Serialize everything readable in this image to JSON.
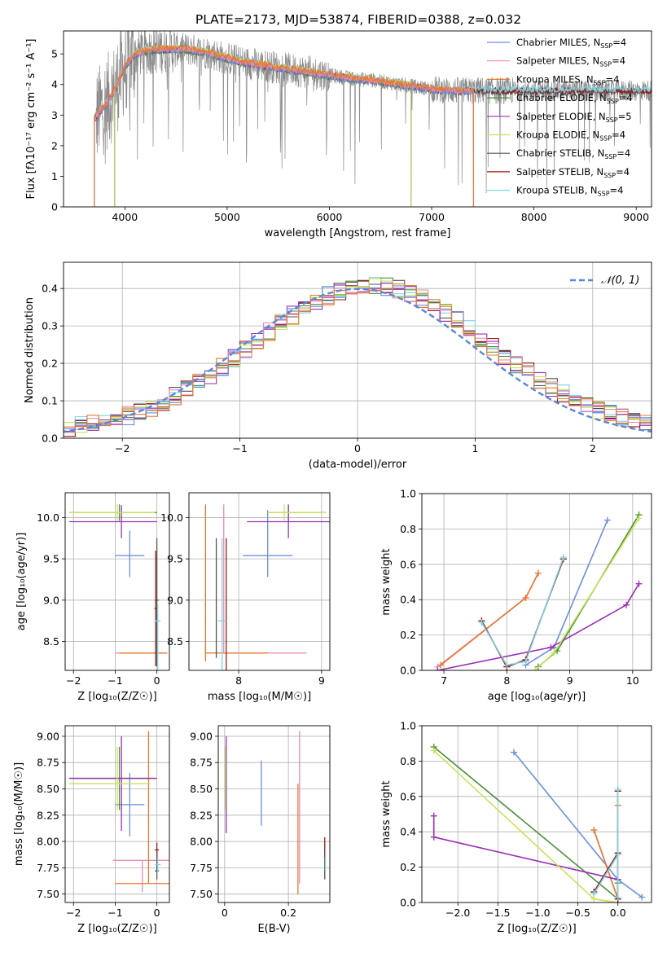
{
  "figure": {
    "title": "PLATE=2173, MJD=53874, FIBERID=0388, z=0.032"
  },
  "colors": {
    "chabrier_miles": "#6a8fdc",
    "salpeter_miles": "#e98ab8",
    "kroupa_miles": "#e8782e",
    "chabrier_elodie": "#4c8f3a",
    "salpeter_elodie": "#9a2fb5",
    "kroupa_elodie": "#c8e35a",
    "chabrier_stelib": "#555555",
    "salpeter_stelib": "#9b1a1a",
    "kroupa_stelib": "#7fd4e0",
    "data_spectrum": "#8a8a8a",
    "gaussian": "#5b86d6",
    "grid": "#b0b0b0"
  },
  "chart_data": [
    {
      "id": "spectrum",
      "type": "line",
      "xlabel": "wavelength [Angstrom, rest frame]",
      "ylabel": "Flux [fλ10⁻¹⁷ erg cm⁻² s⁻¹ A⁻¹]",
      "xlim": [
        3400,
        9150
      ],
      "ylim": [
        0,
        5.75
      ],
      "xticks": [
        4000,
        5000,
        6000,
        7000,
        8000,
        9000
      ],
      "yticks": [
        0,
        1,
        2,
        3,
        4,
        5
      ],
      "grid": false,
      "legend_position": "top-right",
      "legend": [
        {
          "base": "Chabrier MILES, N",
          "sub": "SSP",
          "tail": "=4",
          "color_key": "chabrier_miles"
        },
        {
          "base": "Salpeter MILES, N",
          "sub": "SSP",
          "tail": "=4",
          "color_key": "salpeter_miles"
        },
        {
          "base": "Kroupa MILES, N",
          "sub": "SSP",
          "tail": "=4",
          "color_key": "kroupa_miles"
        },
        {
          "base": "Chabrier ELODIE, N",
          "sub": "SSP",
          "tail": "=4",
          "color_key": "chabrier_elodie"
        },
        {
          "base": "Salpeter ELODIE, N",
          "sub": "SSP",
          "tail": "=5",
          "color_key": "salpeter_elodie"
        },
        {
          "base": "Kroupa ELODIE, N",
          "sub": "SSP",
          "tail": "=4",
          "color_key": "kroupa_elodie"
        },
        {
          "base": "Chabrier STELIB, N",
          "sub": "SSP",
          "tail": "=4",
          "color_key": "chabrier_stelib"
        },
        {
          "base": "Salpeter STELIB, N",
          "sub": "SSP",
          "tail": "=4",
          "color_key": "salpeter_stelib"
        },
        {
          "base": "Kroupa STELIB, N",
          "sub": "SSP",
          "tail": "=4",
          "color_key": "kroupa_stelib"
        }
      ],
      "continuum": {
        "x": [
          3700,
          3800,
          3900,
          4000,
          4100,
          4200,
          4400,
          4600,
          4800,
          5000,
          5200,
          5400,
          5600,
          5800,
          6000,
          6200,
          6400,
          6600,
          6800,
          7000,
          7200,
          7400
        ],
        "y": [
          2.9,
          3.3,
          3.8,
          4.6,
          5.0,
          5.1,
          5.15,
          5.15,
          5.05,
          4.85,
          4.7,
          4.6,
          4.5,
          4.4,
          4.3,
          4.2,
          4.15,
          4.05,
          3.95,
          3.85,
          3.8,
          3.8
        ]
      },
      "model_ranges": {
        "miles": [
          3540,
          7410
        ],
        "elodie": [
          3900,
          6800
        ],
        "stelib": [
          3200,
          9300
        ]
      }
    },
    {
      "id": "residual_histogram",
      "type": "histogram",
      "xlabel": "(data-model)/error",
      "ylabel": "Normed distribution",
      "xlim": [
        -2.5,
        2.5
      ],
      "ylim": [
        0,
        0.47
      ],
      "xticks": [
        -2,
        -1,
        0,
        1,
        2
      ],
      "yticks": [
        0.0,
        0.1,
        0.2,
        0.3,
        0.4
      ],
      "grid": true,
      "bin_width": 0.1,
      "legend": [
        "𝒩(0, 1)"
      ],
      "legend_position": "top-right",
      "gaussian": {
        "mean": 0,
        "sigma": 1
      }
    },
    {
      "id": "age_vs_Z",
      "type": "errorbar",
      "xlabel": "Z [log₁₀(Z/Z☉)]",
      "ylabel": "age  [log₁₀(age/yr)]",
      "xlim": [
        -2.2,
        0.3
      ],
      "ylim": [
        8.15,
        10.3
      ],
      "xticks": [
        -2,
        -1,
        0
      ],
      "yticks": [
        8.5,
        9.0,
        9.5,
        10.0
      ],
      "grid": true,
      "points": [
        {
          "key": "chabrier_miles",
          "x": -0.65,
          "y": 9.54,
          "xerr": [
            0.35,
            0.35
          ],
          "yerr": [
            0.26,
            0.3
          ]
        },
        {
          "key": "salpeter_miles",
          "x": -0.35,
          "y": 8.36,
          "xerr": [
            0.65,
            0.55
          ],
          "yerr": [
            0,
            0
          ]
        },
        {
          "key": "kroupa_miles",
          "x": -0.1,
          "y": 8.36,
          "xerr": [
            0.8,
            0.35
          ],
          "yerr": [
            0,
            0
          ]
        },
        {
          "key": "chabrier_elodie",
          "x": -0.9,
          "y": 10.06,
          "xerr": [
            1.2,
            0.9
          ],
          "yerr": [
            0.1,
            0.1
          ]
        },
        {
          "key": "salpeter_elodie",
          "x": -0.85,
          "y": 9.95,
          "xerr": [
            1.25,
            0.85
          ],
          "yerr": [
            0.2,
            0.2
          ]
        },
        {
          "key": "kroupa_elodie",
          "x": -0.95,
          "y": 10.06,
          "xerr": [
            1.15,
            0.9
          ],
          "yerr": [
            0.1,
            0.1
          ]
        },
        {
          "key": "chabrier_stelib",
          "x": 0.0,
          "y": 9.0,
          "xerr": [
            0.05,
            0.05
          ],
          "yerr": [
            0.8,
            0.75
          ]
        },
        {
          "key": "salpeter_stelib",
          "x": -0.03,
          "y": 8.9,
          "xerr": [
            0.03,
            0.03
          ],
          "yerr": [
            0.7,
            0.7
          ]
        },
        {
          "key": "kroupa_stelib",
          "x": 0.02,
          "y": 8.75,
          "xerr": [
            0.07,
            0.07
          ],
          "yerr": [
            0.6,
            0.2
          ]
        }
      ]
    },
    {
      "id": "age_vs_mass",
      "type": "errorbar",
      "xlabel": "mass [log₁₀(M/M☉)]",
      "ylabel": "",
      "xlim": [
        7.4,
        9.1
      ],
      "ylim": [
        8.15,
        10.3
      ],
      "xticks": [
        8,
        9
      ],
      "yticks": [
        8.5,
        9.0,
        9.5,
        10.0
      ],
      "grid": true,
      "points": [
        {
          "key": "chabrier_miles",
          "x": 8.35,
          "y": 9.54,
          "xerr": [
            0.3,
            0.3
          ],
          "yerr": [
            0.26,
            0.55
          ]
        },
        {
          "key": "salpeter_miles",
          "x": 7.82,
          "y": 8.36,
          "xerr": [
            0.0,
            1.0
          ],
          "yerr": [
            0.0,
            1.8
          ]
        },
        {
          "key": "kroupa_miles",
          "x": 7.6,
          "y": 8.36,
          "xerr": [
            0.0,
            0.75
          ],
          "yerr": [
            0.1,
            1.8
          ]
        },
        {
          "key": "chabrier_elodie",
          "x": 8.6,
          "y": 10.06,
          "xerr": [
            0.25,
            0.45
          ],
          "yerr": [
            0.1,
            0.1
          ]
        },
        {
          "key": "salpeter_elodie",
          "x": 8.6,
          "y": 9.95,
          "xerr": [
            0.5,
            0.5
          ],
          "yerr": [
            0.2,
            0.2
          ]
        },
        {
          "key": "kroupa_elodie",
          "x": 8.55,
          "y": 10.06,
          "xerr": [
            0.2,
            0.5
          ],
          "yerr": [
            0.1,
            0.1
          ]
        },
        {
          "key": "chabrier_stelib",
          "x": 7.73,
          "y": 9.0,
          "xerr": [
            0.0,
            0.0
          ],
          "yerr": [
            0.7,
            0.75
          ]
        },
        {
          "key": "salpeter_stelib",
          "x": 7.85,
          "y": 8.75,
          "xerr": [
            0.0,
            0.0
          ],
          "yerr": [
            0.6,
            1.0
          ]
        },
        {
          "key": "kroupa_stelib",
          "x": 7.8,
          "y": 8.75,
          "xerr": [
            0.05,
            0.05
          ],
          "yerr": [
            0.6,
            1.0
          ]
        }
      ]
    },
    {
      "id": "weight_vs_age",
      "type": "line",
      "xlabel": "age  [log₁₀(age/yr)]",
      "ylabel": "mass weight",
      "xlim": [
        6.65,
        10.3
      ],
      "ylim": [
        0,
        1.0
      ],
      "xticks": [
        7,
        8,
        9,
        10
      ],
      "yticks": [
        0.0,
        0.2,
        0.4,
        0.6,
        0.8,
        1.0
      ],
      "grid": true,
      "series": [
        {
          "key": "chabrier_miles",
          "x": [
            8.3,
            8.75,
            9.6
          ],
          "y": [
            0.03,
            0.13,
            0.85
          ]
        },
        {
          "key": "salpeter_miles",
          "x": [
            6.9,
            8.3,
            8.5
          ],
          "y": [
            0.02,
            0.41,
            0.55
          ]
        },
        {
          "key": "kroupa_miles",
          "x": [
            6.95,
            8.3,
            8.5
          ],
          "y": [
            0.03,
            0.41,
            0.55
          ]
        },
        {
          "key": "chabrier_elodie",
          "x": [
            8.5,
            8.8,
            10.1
          ],
          "y": [
            0.02,
            0.11,
            0.88
          ]
        },
        {
          "key": "salpeter_elodie",
          "x": [
            6.9,
            8.7,
            9.9,
            10.1
          ],
          "y": [
            0.0,
            0.13,
            0.37,
            0.49
          ]
        },
        {
          "key": "kroupa_elodie",
          "x": [
            8.45,
            8.75,
            10.1
          ],
          "y": [
            0.0,
            0.1,
            0.86
          ]
        },
        {
          "key": "chabrier_stelib",
          "x": [
            7.6,
            8.0,
            8.3,
            8.9
          ],
          "y": [
            0.28,
            0.02,
            0.06,
            0.63
          ]
        },
        {
          "key": "salpeter_stelib",
          "x": [
            7.6,
            8.0,
            8.3,
            8.9
          ],
          "y": [
            0.28,
            0.02,
            0.06,
            0.63
          ]
        },
        {
          "key": "kroupa_stelib",
          "x": [
            7.6,
            8.0,
            8.3,
            8.9
          ],
          "y": [
            0.27,
            0.03,
            0.05,
            0.64
          ]
        }
      ]
    },
    {
      "id": "mass_vs_Z",
      "type": "errorbar",
      "xlabel": "Z [log₁₀(Z/Z☉)]",
      "ylabel": "mass [log₁₀(M/M☉)]",
      "xlim": [
        -2.2,
        0.3
      ],
      "ylim": [
        7.42,
        9.1
      ],
      "xticks": [
        -2,
        -1,
        0
      ],
      "yticks": [
        7.5,
        7.75,
        8.0,
        8.25,
        8.5,
        8.75,
        9.0
      ],
      "grid": true,
      "points": [
        {
          "key": "chabrier_miles",
          "x": -0.65,
          "y": 8.35,
          "xerr": [
            0.35,
            0.35
          ],
          "yerr": [
            0.3,
            0.3
          ]
        },
        {
          "key": "salpeter_miles",
          "x": -0.35,
          "y": 7.82,
          "xerr": [
            0.7,
            0.65
          ],
          "yerr": [
            0.3,
            0.0
          ]
        },
        {
          "key": "kroupa_miles",
          "x": -0.2,
          "y": 7.6,
          "xerr": [
            0.8,
            0.5
          ],
          "yerr": [
            0.0,
            1.45
          ]
        },
        {
          "key": "chabrier_elodie",
          "x": -0.9,
          "y": 8.6,
          "xerr": [
            1.2,
            0.85
          ],
          "yerr": [
            0.3,
            0.3
          ]
        },
        {
          "key": "salpeter_elodie",
          "x": -0.85,
          "y": 8.6,
          "xerr": [
            1.25,
            0.85
          ],
          "yerr": [
            0.5,
            0.4
          ]
        },
        {
          "key": "kroupa_elodie",
          "x": -0.95,
          "y": 8.55,
          "xerr": [
            1.15,
            0.8
          ],
          "yerr": [
            0.25,
            0.35
          ]
        },
        {
          "key": "chabrier_stelib",
          "x": 0.0,
          "y": 7.72,
          "xerr": [
            0.05,
            0.05
          ],
          "yerr": [
            0.08,
            0.2
          ]
        },
        {
          "key": "salpeter_stelib",
          "x": 0.0,
          "y": 7.92,
          "xerr": [
            0.05,
            0.05
          ],
          "yerr": [
            0.07,
            0.07
          ]
        },
        {
          "key": "kroupa_stelib",
          "x": 0.02,
          "y": 7.78,
          "xerr": [
            0.07,
            0.07
          ],
          "yerr": [
            0.07,
            0.07
          ]
        }
      ]
    },
    {
      "id": "mass_vs_ebv",
      "type": "errorbar",
      "xlabel": "E(B-V)",
      "ylabel": "",
      "xlim": [
        -0.02,
        0.33
      ],
      "ylim": [
        7.42,
        9.1
      ],
      "xticks": [
        0.0,
        0.2
      ],
      "yticks": [
        7.5,
        7.75,
        8.0,
        8.25,
        8.5,
        8.75,
        9.0
      ],
      "grid": true,
      "points": [
        {
          "key": "chabrier_miles",
          "x": 0.115,
          "y": 8.47,
          "xerr": [
            0,
            0
          ],
          "yerr": [
            0.32,
            0.3
          ]
        },
        {
          "key": "salpeter_miles",
          "x": 0.235,
          "y": 8.25,
          "xerr": [
            0,
            0
          ],
          "yerr": [
            0.65,
            0.8
          ]
        },
        {
          "key": "kroupa_miles",
          "x": 0.23,
          "y": 8.0,
          "xerr": [
            0,
            0
          ],
          "yerr": [
            0.5,
            0.55
          ]
        },
        {
          "key": "chabrier_elodie",
          "x": 0.003,
          "y": 8.6,
          "xerr": [
            0,
            0
          ],
          "yerr": [
            0.3,
            0.3
          ]
        },
        {
          "key": "salpeter_elodie",
          "x": 0.005,
          "y": 8.5,
          "xerr": [
            0,
            0
          ],
          "yerr": [
            0.42,
            0.5
          ]
        },
        {
          "key": "kroupa_elodie",
          "x": 0.002,
          "y": 8.55,
          "xerr": [
            0,
            0
          ],
          "yerr": [
            0.25,
            0.35
          ]
        },
        {
          "key": "chabrier_stelib",
          "x": 0.314,
          "y": 7.72,
          "xerr": [
            0,
            0
          ],
          "yerr": [
            0.08,
            0.2
          ]
        },
        {
          "key": "salpeter_stelib",
          "x": 0.314,
          "y": 7.92,
          "xerr": [
            0,
            0
          ],
          "yerr": [
            0.07,
            0.12
          ]
        },
        {
          "key": "kroupa_stelib",
          "x": 0.316,
          "y": 7.82,
          "xerr": [
            0,
            0
          ],
          "yerr": [
            0.1,
            0.1
          ]
        }
      ]
    },
    {
      "id": "weight_vs_Z",
      "type": "line",
      "xlabel": "Z [log₁₀(Z/Z☉)]",
      "ylabel": "mass weight",
      "xlim": [
        -2.45,
        0.42
      ],
      "ylim": [
        0,
        1.0
      ],
      "xticks": [
        -2.0,
        -1.5,
        -1.0,
        -0.5,
        0.0
      ],
      "xtick_labels": [
        "−2.0",
        "−1.5",
        "−1.0",
        "−0.5",
        "0.0"
      ],
      "yticks": [
        0.0,
        0.2,
        0.4,
        0.6,
        0.8,
        1.0
      ],
      "grid": true,
      "series": [
        {
          "key": "chabrier_miles",
          "x": [
            -1.3,
            0.0,
            0.3
          ],
          "y": [
            0.85,
            0.13,
            0.03
          ]
        },
        {
          "key": "salpeter_miles",
          "x": [
            -0.3,
            0.0,
            0.0
          ],
          "y": [
            0.41,
            0.02,
            0.55
          ]
        },
        {
          "key": "kroupa_miles",
          "x": [
            -0.3,
            0.0,
            0.0
          ],
          "y": [
            0.41,
            0.02,
            0.55
          ]
        },
        {
          "key": "chabrier_elodie",
          "x": [
            -2.3,
            0.0,
            0.0
          ],
          "y": [
            0.88,
            0.02,
            0.11
          ]
        },
        {
          "key": "salpeter_elodie",
          "x": [
            -2.3,
            -2.3,
            0.0,
            0.0
          ],
          "y": [
            0.49,
            0.37,
            0.13,
            0.0
          ]
        },
        {
          "key": "kroupa_elodie",
          "x": [
            -2.3,
            -0.3,
            0.0
          ],
          "y": [
            0.86,
            0.02,
            0.0
          ]
        },
        {
          "key": "chabrier_stelib",
          "x": [
            -0.3,
            0.0,
            0.0,
            0.0
          ],
          "y": [
            0.06,
            0.28,
            0.02,
            0.63
          ]
        },
        {
          "key": "salpeter_stelib",
          "x": [
            -0.3,
            0.0,
            0.0,
            0.0
          ],
          "y": [
            0.06,
            0.28,
            0.02,
            0.63
          ]
        },
        {
          "key": "kroupa_stelib",
          "x": [
            -0.3,
            0.0,
            0.0,
            0.0
          ],
          "y": [
            0.05,
            0.27,
            0.03,
            0.64
          ]
        }
      ]
    }
  ]
}
